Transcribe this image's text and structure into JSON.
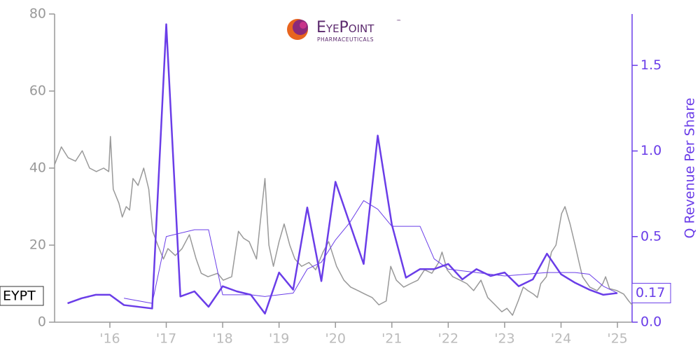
{
  "chart_data": {
    "type": "line",
    "logo": {
      "name": "EyePoint",
      "trademark": "™",
      "tagline": "PHARMACEUTICALS"
    },
    "ticker": "EYPT",
    "y2_label": "Q Revenue Per Share",
    "xlim": [
      2015.02,
      2025.26
    ],
    "xticks": [
      {
        "value": 2016,
        "label": "'16"
      },
      {
        "value": 2017,
        "label": "'17"
      },
      {
        "value": 2018,
        "label": "'18"
      },
      {
        "value": 2019,
        "label": "'19"
      },
      {
        "value": 2020,
        "label": "'20"
      },
      {
        "value": 2021,
        "label": "'21"
      },
      {
        "value": 2022,
        "label": "'22"
      },
      {
        "value": 2023,
        "label": "'23"
      },
      {
        "value": 2024,
        "label": "'24"
      },
      {
        "value": 2025,
        "label": "'25"
      }
    ],
    "ylim": [
      0,
      80
    ],
    "yticks": [
      0,
      20,
      40,
      60,
      80
    ],
    "y2lim": [
      0,
      1.8
    ],
    "y2ticks": [
      {
        "value": 0,
        "label": "0.0"
      },
      {
        "value": 0.5,
        "label": "0.5"
      },
      {
        "value": 1,
        "label": "1.0"
      },
      {
        "value": 1.5,
        "label": "1.5"
      }
    ],
    "grid": false,
    "series": [
      {
        "color": "#999999",
        "width": 1.5,
        "x": [
          2015.02,
          2015.14,
          2015.26,
          2015.39,
          2015.51,
          2015.64,
          2015.76,
          2015.89,
          2015.98,
          2016.01,
          2016.06,
          2016.16,
          2016.22,
          2016.29,
          2016.35,
          2016.41,
          2016.5,
          2016.6,
          2016.69,
          2016.76,
          2016.85,
          2016.95,
          2017.03,
          2017.16,
          2017.28,
          2017.41,
          2017.53,
          2017.62,
          2017.74,
          2017.91,
          2018.01,
          2018.16,
          2018.28,
          2018.37,
          2018.47,
          2018.6,
          2018.65,
          2018.75,
          2018.82,
          2018.9,
          2019.0,
          2019.09,
          2019.19,
          2019.28,
          2019.4,
          2019.53,
          2019.65,
          2019.78,
          2019.88,
          2020.02,
          2020.15,
          2020.27,
          2020.4,
          2020.52,
          2020.65,
          2020.77,
          2020.9,
          2020.98,
          2021.08,
          2021.21,
          2021.33,
          2021.46,
          2021.58,
          2021.71,
          2021.83,
          2021.89,
          2021.98,
          2022.08,
          2022.21,
          2022.33,
          2022.45,
          2022.58,
          2022.7,
          2022.83,
          2022.95,
          2023.04,
          2023.14,
          2023.24,
          2023.33,
          2023.41,
          2023.51,
          2023.58,
          2023.64,
          2023.74,
          2023.83,
          2023.91,
          2024.01,
          2024.07,
          2024.16,
          2024.25,
          2024.32,
          2024.38,
          2024.51,
          2024.64,
          2024.74,
          2024.79,
          2024.86,
          2024.99,
          2025.11,
          2025.2,
          2025.26
        ],
        "values": [
          40.9,
          45.5,
          42.7,
          41.8,
          44.5,
          40,
          39.1,
          40,
          39.1,
          48.2,
          34.5,
          30.9,
          27.3,
          30,
          29.1,
          37.3,
          35.5,
          40,
          34.5,
          23.6,
          20,
          16.4,
          19.1,
          17.3,
          19.1,
          22.7,
          16.4,
          12.7,
          11.8,
          12.7,
          10.9,
          11.8,
          23.6,
          21.8,
          20.9,
          16.4,
          23.6,
          37.3,
          20,
          14.5,
          20.9,
          25.5,
          20,
          16.4,
          14.5,
          15.5,
          13.6,
          18.2,
          20.9,
          14.5,
          10.9,
          9.1,
          8.2,
          7.3,
          6.4,
          4.5,
          5.5,
          14.5,
          10.9,
          9.1,
          10,
          10.9,
          13.6,
          12.7,
          15.5,
          18.2,
          13.6,
          11.8,
          10.9,
          10,
          8.2,
          10.9,
          6.4,
          4.5,
          2.7,
          3.6,
          1.8,
          5.5,
          9.1,
          8.2,
          7.3,
          6.4,
          10,
          11.8,
          18.2,
          20,
          28.2,
          30,
          25.5,
          20,
          15.5,
          11.8,
          9.1,
          8.2,
          10,
          11.8,
          8.7,
          8.2,
          7.3,
          5.5,
          4.5
        ]
      },
      {
        "color": "#6a3de8",
        "width": 2.5,
        "axis": "y2",
        "x": [
          2015.25,
          2015.5,
          2015.75,
          2016.0,
          2016.25,
          2016.75,
          2017.0,
          2017.25,
          2017.5,
          2017.75,
          2018.0,
          2018.25,
          2018.5,
          2018.75,
          2019.0,
          2019.25,
          2019.5,
          2019.75,
          2020.0,
          2020.25,
          2020.5,
          2020.75,
          2021.0,
          2021.25,
          2021.5,
          2021.75,
          2022.0,
          2022.25,
          2022.5,
          2022.75,
          2023.0,
          2023.25,
          2023.5,
          2023.75,
          2024.0,
          2024.25,
          2024.5,
          2024.75,
          2025.0
        ],
        "values": [
          0.11,
          0.14,
          0.16,
          0.16,
          0.1,
          0.08,
          1.74,
          0.15,
          0.18,
          0.09,
          0.21,
          0.18,
          0.16,
          0.05,
          0.29,
          0.19,
          0.67,
          0.24,
          0.82,
          0.58,
          0.34,
          1.09,
          0.57,
          0.26,
          0.31,
          0.31,
          0.34,
          0.25,
          0.31,
          0.27,
          0.29,
          0.21,
          0.25,
          0.4,
          0.28,
          0.23,
          0.19,
          0.16,
          0.17
        ]
      },
      {
        "color": "#6a3de8",
        "width": 1,
        "axis": "y2",
        "x": [
          2016.25,
          2016.75,
          2017.0,
          2017.5,
          2017.75,
          2018.0,
          2018.5,
          2018.75,
          2019.25,
          2019.5,
          2019.75,
          2020.0,
          2020.25,
          2020.5,
          2020.75,
          2021.0,
          2021.25,
          2021.5,
          2021.75,
          2022.0,
          2023.0,
          2023.75,
          2024.25,
          2024.5,
          2024.75,
          2025.0
        ],
        "values": [
          0.14,
          0.11,
          0.5,
          0.54,
          0.54,
          0.16,
          0.16,
          0.15,
          0.17,
          0.31,
          0.35,
          0.48,
          0.58,
          0.71,
          0.66,
          0.56,
          0.56,
          0.56,
          0.37,
          0.31,
          0.27,
          0.29,
          0.29,
          0.28,
          0.21,
          0.17
        ]
      }
    ]
  }
}
